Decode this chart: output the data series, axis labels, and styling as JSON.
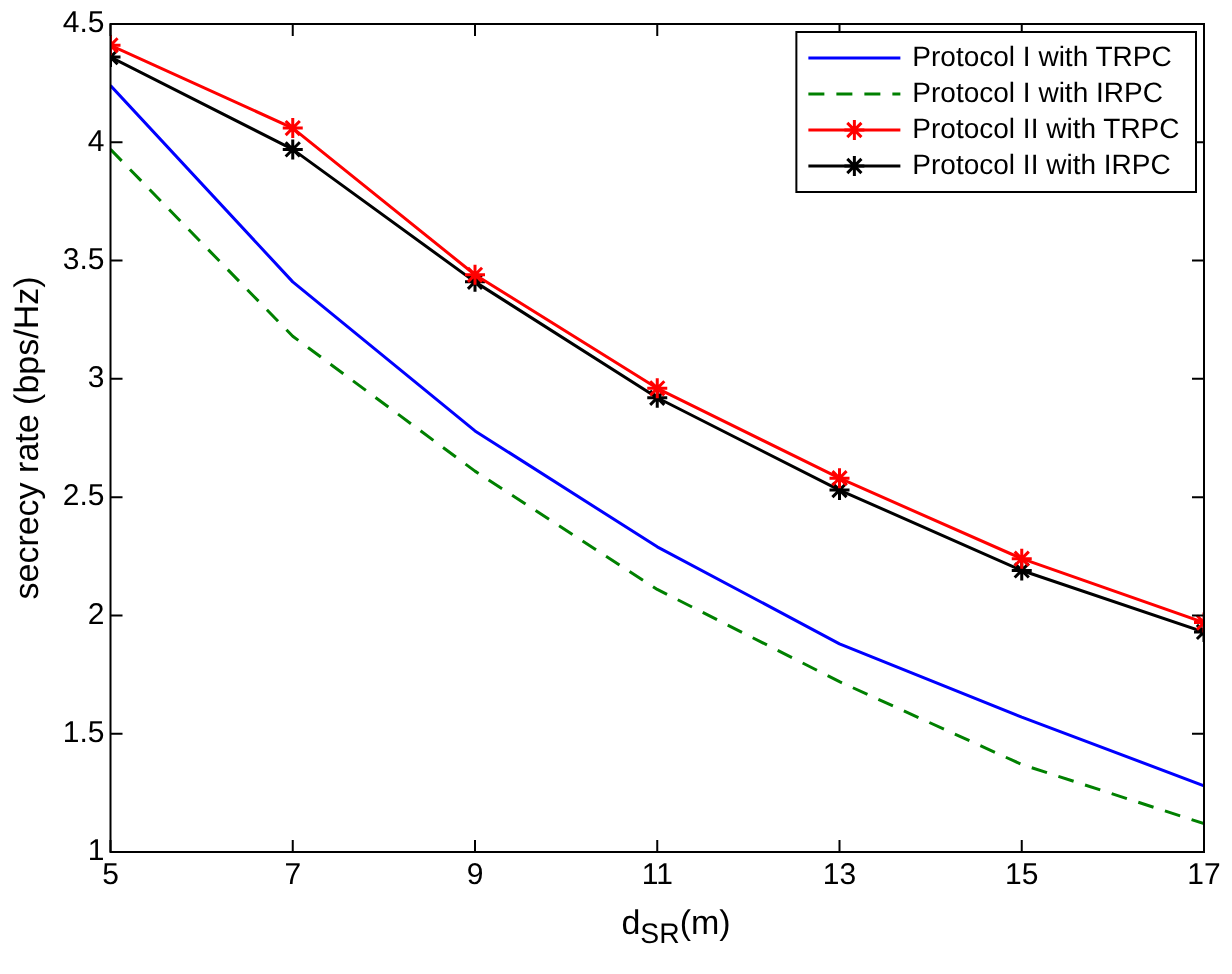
{
  "chart_data": {
    "type": "line",
    "xlabel": "d$_{SR}$(m)",
    "ylabel": "secrecy rate (bps/Hz)",
    "x": [
      5,
      7,
      9,
      11,
      13,
      15,
      17
    ],
    "xlim": [
      5,
      17
    ],
    "xticks": [
      5,
      7,
      9,
      11,
      13,
      15,
      17
    ],
    "ylim": [
      1,
      4.5
    ],
    "yticks": [
      1,
      1.5,
      2,
      2.5,
      3,
      3.5,
      4,
      4.5
    ],
    "grid": false,
    "legend": "top right",
    "series": [
      {
        "name": "Protocol I with TRPC",
        "color": "#0000ff",
        "values": [
          4.24,
          3.41,
          2.78,
          2.29,
          1.88,
          1.57,
          1.28
        ],
        "marker": "none",
        "line_style": "solid"
      },
      {
        "name": "Protocol I with IRPC",
        "color": "#008000",
        "values": [
          3.97,
          3.18,
          2.61,
          2.11,
          1.72,
          1.37,
          1.12
        ],
        "marker": "none",
        "line_style": "dashed"
      },
      {
        "name": "Protocol II with TRPC",
        "color": "#ff0000",
        "values": [
          4.41,
          4.06,
          3.44,
          2.96,
          2.58,
          2.24,
          1.97
        ],
        "marker": "cross",
        "line_style": "solid"
      },
      {
        "name": "Protocol II with IRPC",
        "color": "#000000",
        "values": [
          4.36,
          3.97,
          3.41,
          2.92,
          2.53,
          2.19,
          1.93
        ],
        "marker": "cross",
        "line_style": "solid"
      }
    ]
  }
}
